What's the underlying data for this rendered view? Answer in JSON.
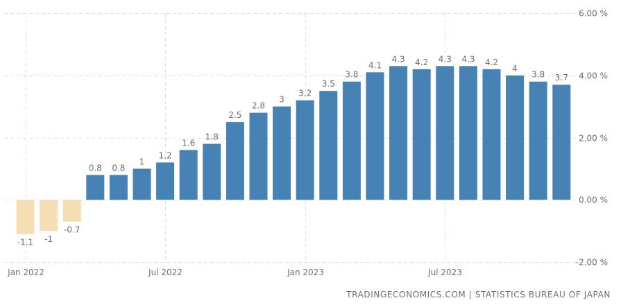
{
  "chart_data": {
    "type": "bar",
    "categories": [
      "Jan 2022",
      "Feb 2022",
      "Mar 2022",
      "Apr 2022",
      "May 2022",
      "Jun 2022",
      "Jul 2022",
      "Aug 2022",
      "Sep 2022",
      "Oct 2022",
      "Nov 2022",
      "Dec 2022",
      "Jan 2023",
      "Feb 2023",
      "Mar 2023",
      "Apr 2023",
      "May 2023",
      "Jun 2023",
      "Jul 2023",
      "Aug 2023",
      "Sep 2023",
      "Oct 2023",
      "Nov 2023",
      "Dec 2023"
    ],
    "values": [
      -1.1,
      -1,
      -0.7,
      0.8,
      0.8,
      1,
      1.2,
      1.6,
      1.8,
      2.5,
      2.8,
      3,
      3.2,
      3.5,
      3.8,
      4.1,
      4.3,
      4.2,
      4.3,
      4.3,
      4.2,
      4,
      3.8,
      3.7
    ],
    "x_tick_labels": [
      {
        "index": 0,
        "label": "Jan 2022"
      },
      {
        "index": 6,
        "label": "Jul 2022"
      },
      {
        "index": 12,
        "label": "Jan 2023"
      },
      {
        "index": 18,
        "label": "Jul 2023"
      }
    ],
    "y_ticks": [
      6,
      4,
      2,
      0,
      -2
    ],
    "y_tick_labels": [
      "6.00 %",
      "4.00 %",
      "2.00 %",
      "0.00 %",
      "-2.00 %"
    ],
    "ylim": [
      -2,
      6
    ],
    "grid": true,
    "colors": {
      "positive": "#4682b4",
      "negative": "#f5deb3",
      "label": "#6f6f6f",
      "grid": "#e0e0e0"
    }
  },
  "source": "TRADINGECONOMICS.COM | STATISTICS BUREAU OF JAPAN"
}
